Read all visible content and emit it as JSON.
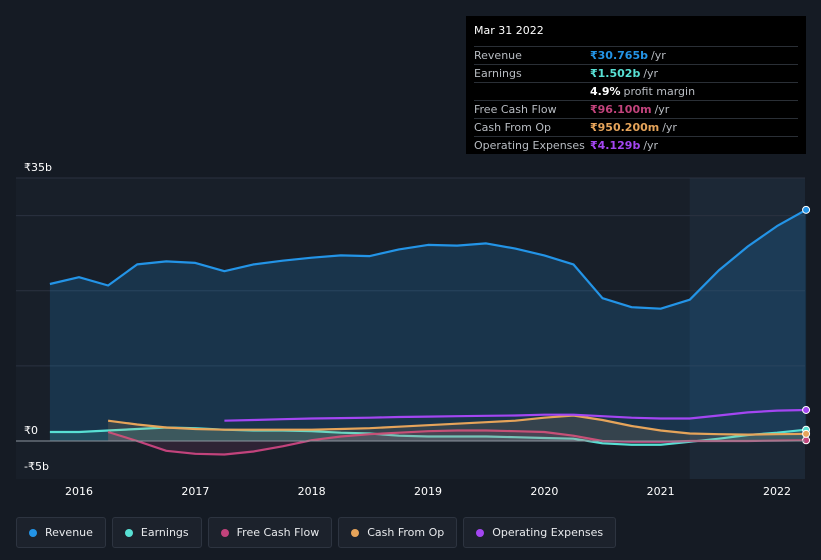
{
  "tooltip": {
    "date": "Mar 31 2022",
    "rows": [
      {
        "label": "Revenue",
        "value": "₹30.765b",
        "unit": "/yr",
        "color": "#2394e7"
      },
      {
        "label": "Earnings",
        "value": "₹1.502b",
        "unit": "/yr",
        "color": "#58e0d4"
      },
      {
        "label": "",
        "value": "4.9%",
        "unit": "profit margin",
        "color": "#ffffff"
      },
      {
        "label": "Free Cash Flow",
        "value": "₹96.100m",
        "unit": "/yr",
        "color": "#c2437c"
      },
      {
        "label": "Cash From Op",
        "value": "₹950.200m",
        "unit": "/yr",
        "color": "#e6a45a"
      },
      {
        "label": "Operating Expenses",
        "value": "₹4.129b",
        "unit": "/yr",
        "color": "#a346f2"
      }
    ]
  },
  "legend": [
    {
      "label": "Revenue",
      "color": "#2394e7"
    },
    {
      "label": "Earnings",
      "color": "#58e0d4"
    },
    {
      "label": "Free Cash Flow",
      "color": "#c2437c"
    },
    {
      "label": "Cash From Op",
      "color": "#e6a45a"
    },
    {
      "label": "Operating Expenses",
      "color": "#a346f2"
    }
  ],
  "chart_data": {
    "type": "area",
    "ylabel_top": "₹35b",
    "ylabel_zero": "₹0",
    "ylabel_bottom": "-₹5b",
    "ylim": [
      -5,
      35
    ],
    "xlim": [
      2015.75,
      2022.25
    ],
    "x_ticks": [
      "2016",
      "2017",
      "2018",
      "2019",
      "2020",
      "2021",
      "2022"
    ],
    "highlight_start": 2021.25,
    "series": [
      {
        "name": "Revenue",
        "color": "#2394e7",
        "fill": true,
        "points": [
          [
            2015.75,
            20.9
          ],
          [
            2016.0,
            21.8
          ],
          [
            2016.25,
            20.7
          ],
          [
            2016.5,
            23.5
          ],
          [
            2016.75,
            23.9
          ],
          [
            2017.0,
            23.7
          ],
          [
            2017.25,
            22.6
          ],
          [
            2017.5,
            23.5
          ],
          [
            2017.75,
            24.0
          ],
          [
            2018.0,
            24.4
          ],
          [
            2018.25,
            24.7
          ],
          [
            2018.5,
            24.6
          ],
          [
            2018.75,
            25.5
          ],
          [
            2019.0,
            26.1
          ],
          [
            2019.25,
            26.0
          ],
          [
            2019.5,
            26.3
          ],
          [
            2019.75,
            25.6
          ],
          [
            2020.0,
            24.7
          ],
          [
            2020.25,
            23.5
          ],
          [
            2020.5,
            19.0
          ],
          [
            2020.75,
            17.8
          ],
          [
            2021.0,
            17.6
          ],
          [
            2021.25,
            18.8
          ],
          [
            2021.5,
            22.7
          ],
          [
            2021.75,
            25.9
          ],
          [
            2022.0,
            28.6
          ],
          [
            2022.25,
            30.765
          ]
        ]
      },
      {
        "name": "Earnings",
        "color": "#58e0d4",
        "fill": true,
        "points": [
          [
            2015.75,
            1.2
          ],
          [
            2016.0,
            1.2
          ],
          [
            2016.25,
            1.4
          ],
          [
            2016.5,
            1.6
          ],
          [
            2016.75,
            1.8
          ],
          [
            2017.0,
            1.7
          ],
          [
            2017.25,
            1.5
          ],
          [
            2017.5,
            1.4
          ],
          [
            2017.75,
            1.4
          ],
          [
            2018.0,
            1.3
          ],
          [
            2018.25,
            1.1
          ],
          [
            2018.5,
            1.0
          ],
          [
            2018.75,
            0.7
          ],
          [
            2019.0,
            0.6
          ],
          [
            2019.25,
            0.6
          ],
          [
            2019.5,
            0.6
          ],
          [
            2019.75,
            0.5
          ],
          [
            2020.0,
            0.4
          ],
          [
            2020.25,
            0.3
          ],
          [
            2020.5,
            -0.3
          ],
          [
            2020.75,
            -0.5
          ],
          [
            2021.0,
            -0.5
          ],
          [
            2021.25,
            -0.1
          ],
          [
            2021.5,
            0.3
          ],
          [
            2021.75,
            0.8
          ],
          [
            2022.0,
            1.1
          ],
          [
            2022.25,
            1.502
          ]
        ]
      },
      {
        "name": "Free Cash Flow",
        "color": "#c2437c",
        "fill": true,
        "points": [
          [
            2016.25,
            1.2
          ],
          [
            2016.5,
            0.0
          ],
          [
            2016.75,
            -1.3
          ],
          [
            2017.0,
            -1.7
          ],
          [
            2017.25,
            -1.8
          ],
          [
            2017.5,
            -1.4
          ],
          [
            2017.75,
            -0.7
          ],
          [
            2018.0,
            0.1
          ],
          [
            2018.25,
            0.6
          ],
          [
            2018.5,
            0.9
          ],
          [
            2018.75,
            1.1
          ],
          [
            2019.0,
            1.3
          ],
          [
            2019.25,
            1.4
          ],
          [
            2019.5,
            1.4
          ],
          [
            2019.75,
            1.3
          ],
          [
            2020.0,
            1.2
          ],
          [
            2020.25,
            0.7
          ],
          [
            2020.5,
            0.0
          ],
          [
            2020.75,
            -0.1
          ],
          [
            2021.0,
            -0.1
          ],
          [
            2021.25,
            0.0
          ],
          [
            2021.5,
            0.0
          ],
          [
            2021.75,
            0.0
          ],
          [
            2022.0,
            0.05
          ],
          [
            2022.25,
            0.0961
          ]
        ]
      },
      {
        "name": "Cash From Op",
        "color": "#e6a45a",
        "fill": true,
        "points": [
          [
            2016.25,
            2.7
          ],
          [
            2016.5,
            2.2
          ],
          [
            2016.75,
            1.8
          ],
          [
            2017.0,
            1.6
          ],
          [
            2017.25,
            1.5
          ],
          [
            2017.5,
            1.5
          ],
          [
            2017.75,
            1.5
          ],
          [
            2018.0,
            1.5
          ],
          [
            2018.25,
            1.6
          ],
          [
            2018.5,
            1.7
          ],
          [
            2018.75,
            1.9
          ],
          [
            2019.0,
            2.1
          ],
          [
            2019.25,
            2.3
          ],
          [
            2019.5,
            2.5
          ],
          [
            2019.75,
            2.7
          ],
          [
            2020.0,
            3.1
          ],
          [
            2020.25,
            3.4
          ],
          [
            2020.5,
            2.8
          ],
          [
            2020.75,
            2.0
          ],
          [
            2021.0,
            1.4
          ],
          [
            2021.25,
            1.0
          ],
          [
            2021.5,
            0.9
          ],
          [
            2021.75,
            0.85
          ],
          [
            2022.0,
            0.9
          ],
          [
            2022.25,
            0.9502
          ]
        ]
      },
      {
        "name": "Operating Expenses",
        "color": "#a346f2",
        "fill": false,
        "points": [
          [
            2017.25,
            2.7
          ],
          [
            2017.5,
            2.8
          ],
          [
            2017.75,
            2.9
          ],
          [
            2018.0,
            3.0
          ],
          [
            2018.25,
            3.05
          ],
          [
            2018.5,
            3.1
          ],
          [
            2018.75,
            3.2
          ],
          [
            2019.0,
            3.25
          ],
          [
            2019.25,
            3.3
          ],
          [
            2019.5,
            3.35
          ],
          [
            2019.75,
            3.4
          ],
          [
            2020.0,
            3.5
          ],
          [
            2020.25,
            3.5
          ],
          [
            2020.5,
            3.3
          ],
          [
            2020.75,
            3.1
          ],
          [
            2021.0,
            3.0
          ],
          [
            2021.25,
            3.0
          ],
          [
            2021.5,
            3.4
          ],
          [
            2021.75,
            3.8
          ],
          [
            2022.0,
            4.05
          ],
          [
            2022.25,
            4.129
          ]
        ]
      }
    ]
  }
}
